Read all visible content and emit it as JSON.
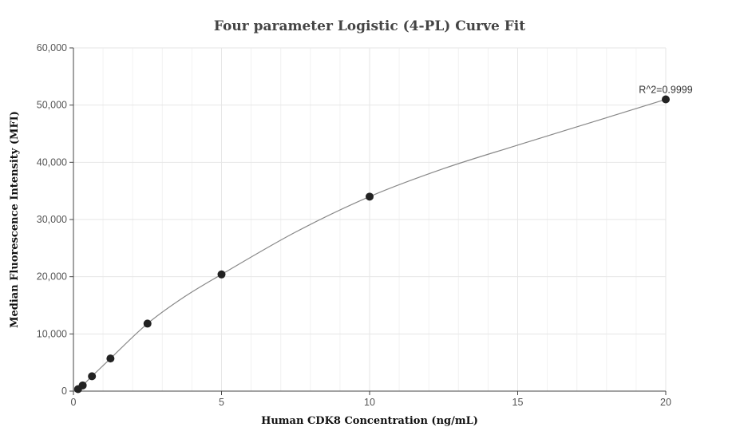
{
  "chart_data": {
    "type": "scatter",
    "title": "Four parameter Logistic (4-PL) Curve Fit",
    "xlabel": "Human CDK8 Concentration (ng/mL)",
    "ylabel": "Median Fluorescence Intensity (MFI)",
    "xlim": [
      0,
      20
    ],
    "ylim": [
      0,
      60000
    ],
    "x_ticks": [
      0,
      5,
      10,
      15,
      20
    ],
    "x_tick_labels": [
      "0",
      "5",
      "10",
      "15",
      "20"
    ],
    "y_ticks": [
      0,
      10000,
      20000,
      30000,
      40000,
      50000,
      60000
    ],
    "y_tick_labels": [
      "0",
      "10,000",
      "20,000",
      "30,000",
      "40,000",
      "50,000",
      "60,000"
    ],
    "grid": true,
    "series": [
      {
        "x": [
          0.156,
          0.313,
          0.625,
          1.25,
          2.5,
          5,
          10,
          20
        ],
        "y": [
          350,
          1000,
          2600,
          5700,
          11800,
          20400,
          34000,
          51000
        ]
      }
    ],
    "fit_curve": {
      "model": "4-PL",
      "x": [
        0,
        0.156,
        0.313,
        0.625,
        1.25,
        2.5,
        3.75,
        5,
        7.5,
        10,
        12.5,
        15,
        17.5,
        20
      ],
      "y": [
        0,
        350,
        1000,
        2600,
        5700,
        11800,
        16500,
        20400,
        27800,
        34000,
        38900,
        43000,
        47000,
        51000
      ]
    },
    "annotations": [
      {
        "text": "R^2=0.9999",
        "x": 20,
        "y": 51000
      }
    ],
    "colors": {
      "marker": "#222222",
      "curve": "#888888",
      "grid": "#e6e6e6",
      "axis": "#444444"
    }
  }
}
